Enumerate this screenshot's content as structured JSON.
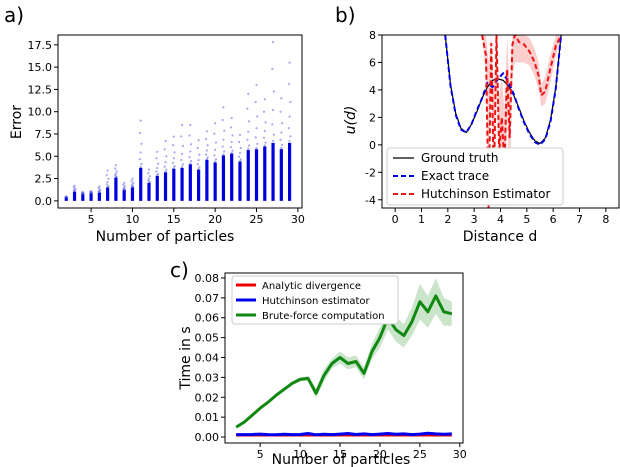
{
  "chart_data": [
    {
      "id": "a",
      "panel_label": "a)",
      "type": "scatter",
      "xlabel": "Number of particles",
      "ylabel": "Error",
      "xlim": [
        1,
        30.5
      ],
      "ylim": [
        -0.8,
        18.6
      ],
      "xticks": [
        5,
        10,
        15,
        20,
        25,
        30
      ],
      "yticks": [
        0.0,
        2.5,
        5.0,
        7.5,
        10.0,
        12.5,
        15.0,
        17.5
      ],
      "ytick_labels": [
        "0.0",
        "2.5",
        "5.0",
        "7.5",
        "10.0",
        "12.5",
        "15.0",
        "17.5"
      ],
      "color": "#0000dd",
      "x": [
        2,
        3,
        4,
        5,
        6,
        7,
        8,
        9,
        10,
        11,
        12,
        13,
        14,
        15,
        16,
        17,
        18,
        19,
        20,
        21,
        22,
        23,
        24,
        25,
        26,
        27,
        28,
        29
      ],
      "dense_max": [
        0.3,
        1.0,
        0.7,
        0.8,
        0.9,
        1.5,
        2.6,
        1.2,
        1.5,
        3.7,
        2.0,
        2.8,
        3.2,
        3.6,
        3.7,
        4.1,
        3.5,
        4.6,
        4.3,
        5.1,
        5.3,
        4.4,
        5.7,
        5.8,
        6.1,
        6.5,
        5.8,
        6.5
      ],
      "sparse_max": [
        0.5,
        1.7,
        1.0,
        1.1,
        1.6,
        3.4,
        4.0,
        2.0,
        2.5,
        9.0,
        3.5,
        5.5,
        6.7,
        7.2,
        8.5,
        8.5,
        6.8,
        7.8,
        8.7,
        10.5,
        9.3,
        7.4,
        12.0,
        13.0,
        11.4,
        17.8,
        11.5,
        15.5
      ]
    },
    {
      "id": "b",
      "panel_label": "b)",
      "type": "line",
      "xlabel": "Distance d",
      "ylabel": "u(d)",
      "xlim": [
        -0.5,
        8.5
      ],
      "ylim": [
        -4.6,
        8
      ],
      "xticks": [
        0,
        1,
        2,
        3,
        4,
        5,
        6,
        7,
        8
      ],
      "yticks": [
        -4,
        -2,
        0,
        2,
        4,
        6,
        8
      ],
      "legend_position": "bottom-left",
      "series": [
        {
          "name": "Ground truth",
          "color": "#000000",
          "style": "solid",
          "x": [
            1.9,
            2.1,
            2.3,
            2.5,
            2.7,
            2.9,
            3.1,
            3.3,
            3.5,
            3.7,
            3.9,
            4.1,
            4.3,
            4.5,
            4.7,
            4.9,
            5.1,
            5.3,
            5.5,
            5.7,
            5.9,
            6.1,
            6.3
          ],
          "y": [
            8.0,
            4.4,
            2.3,
            1.2,
            0.9,
            1.5,
            2.4,
            3.4,
            4.2,
            4.7,
            4.8,
            4.7,
            4.3,
            3.6,
            2.7,
            1.7,
            0.9,
            0.3,
            0.1,
            0.5,
            1.8,
            4.2,
            8.0
          ]
        },
        {
          "name": "Exact trace",
          "color": "#0000ee",
          "style": "dashed",
          "x": [
            1.9,
            2.1,
            2.3,
            2.5,
            2.7,
            2.9,
            3.1,
            3.3,
            3.5,
            3.7,
            3.9,
            4.1,
            4.3,
            4.5,
            4.7,
            4.9,
            5.1,
            5.3,
            5.5,
            5.7,
            5.9,
            6.1,
            6.3
          ],
          "y": [
            8.0,
            4.3,
            2.2,
            1.1,
            0.9,
            1.5,
            2.5,
            3.4,
            4.5,
            4.2,
            4.8,
            5.2,
            4.6,
            3.7,
            2.6,
            1.6,
            0.8,
            0.2,
            0.0,
            0.4,
            1.7,
            4.1,
            8.0
          ]
        },
        {
          "name": "Hutchinson Estimator",
          "color": "#ee1111",
          "style": "dashed",
          "x": [
            3.3,
            3.45,
            3.55,
            3.65,
            3.75,
            3.85,
            3.95,
            4.05,
            4.15,
            4.25,
            4.35,
            4.45,
            4.55,
            4.7,
            4.9,
            5.1,
            5.3,
            5.45,
            5.55,
            5.7,
            5.9,
            6.1,
            6.3
          ],
          "y": [
            8.0,
            6.5,
            -4.6,
            7.4,
            -3.0,
            8.0,
            -0.5,
            2.0,
            -1.5,
            5.5,
            0.5,
            7.3,
            8.0,
            7.5,
            7.3,
            6.8,
            6.0,
            5.0,
            3.6,
            3.9,
            5.6,
            7.2,
            8.0
          ]
        }
      ],
      "band": {
        "x": [
          3.3,
          3.45,
          3.55,
          3.65,
          3.75,
          3.85,
          3.95,
          4.05,
          4.15,
          4.25,
          4.35,
          4.45,
          4.55,
          4.7,
          4.9,
          5.1,
          5.3,
          5.45,
          5.55,
          5.7,
          5.9,
          6.1,
          6.3
        ],
        "lower": [
          8.0,
          5.0,
          -4.6,
          5.0,
          -4.6,
          6.0,
          -4.6,
          -1.0,
          -4.6,
          2.0,
          -3.0,
          5.0,
          6.0,
          6.0,
          6.0,
          5.8,
          5.0,
          4.0,
          2.8,
          3.0,
          4.6,
          6.4,
          8.0
        ],
        "upper": [
          8.0,
          8.0,
          6.0,
          8.0,
          4.0,
          8.0,
          3.5,
          5.0,
          2.5,
          8.0,
          4.0,
          8.0,
          8.0,
          8.0,
          8.0,
          7.8,
          7.0,
          6.0,
          4.4,
          5.0,
          6.6,
          8.0,
          8.0
        ]
      }
    },
    {
      "id": "c",
      "panel_label": "c)",
      "type": "line",
      "xlabel": "Number of particles",
      "ylabel": "Time in s",
      "xlim": [
        0.6,
        30.4
      ],
      "ylim": [
        -0.003,
        0.0825
      ],
      "xticks": [
        5,
        10,
        15,
        20,
        25,
        30
      ],
      "yticks": [
        0.0,
        0.01,
        0.02,
        0.03,
        0.04,
        0.05,
        0.06,
        0.07,
        0.08
      ],
      "ytick_labels": [
        "0.00",
        "0.01",
        "0.02",
        "0.03",
        "0.04",
        "0.05",
        "0.06",
        "0.07",
        "0.08"
      ],
      "legend_position": "top-left",
      "x": [
        2,
        3,
        4,
        5,
        6,
        7,
        8,
        9,
        10,
        11,
        12,
        13,
        14,
        15,
        16,
        17,
        18,
        19,
        20,
        21,
        22,
        23,
        24,
        25,
        26,
        27,
        28,
        29
      ],
      "series": [
        {
          "name": "Analytic divergence",
          "color": "#ee0000",
          "values": [
            0.001,
            0.001,
            0.001,
            0.001,
            0.001,
            0.001,
            0.001,
            0.001,
            0.001,
            0.001,
            0.001,
            0.001,
            0.001,
            0.001,
            0.001,
            0.001,
            0.001,
            0.001,
            0.001,
            0.001,
            0.001,
            0.001,
            0.001,
            0.001,
            0.001,
            0.001,
            0.001,
            0.001
          ]
        },
        {
          "name": "Hutchinson estimator",
          "color": "#0000ee",
          "values": [
            0.0012,
            0.0012,
            0.0013,
            0.0015,
            0.0012,
            0.0011,
            0.0014,
            0.0012,
            0.0013,
            0.0018,
            0.0011,
            0.0014,
            0.0012,
            0.0015,
            0.0018,
            0.0013,
            0.0016,
            0.0012,
            0.0015,
            0.0018,
            0.0014,
            0.0016,
            0.0012,
            0.0015,
            0.0019,
            0.0016,
            0.0014,
            0.0016
          ]
        },
        {
          "name": "Brute-force computation",
          "color": "#118811",
          "values": [
            0.005,
            0.0075,
            0.011,
            0.0145,
            0.0175,
            0.021,
            0.024,
            0.027,
            0.029,
            0.0295,
            0.022,
            0.031,
            0.037,
            0.04,
            0.037,
            0.038,
            0.032,
            0.043,
            0.05,
            0.06,
            0.054,
            0.051,
            0.058,
            0.068,
            0.063,
            0.071,
            0.063,
            0.062
          ],
          "band_halfwidth": [
            0.0005,
            0.0006,
            0.0007,
            0.0008,
            0.0008,
            0.0009,
            0.0009,
            0.001,
            0.001,
            0.0012,
            0.0025,
            0.003,
            0.0025,
            0.003,
            0.003,
            0.003,
            0.003,
            0.004,
            0.005,
            0.006,
            0.006,
            0.006,
            0.007,
            0.009,
            0.008,
            0.009,
            0.007,
            0.006
          ]
        }
      ]
    }
  ]
}
